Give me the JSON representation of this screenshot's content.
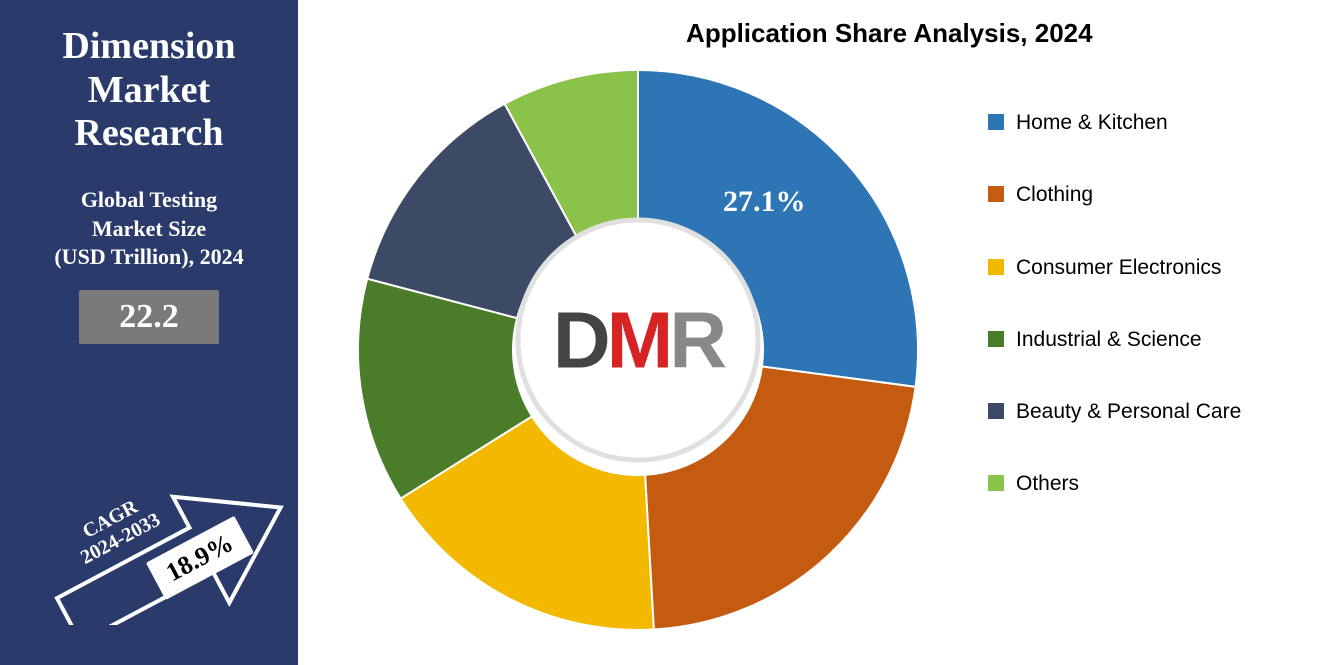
{
  "left": {
    "brand_line1": "Dimension",
    "brand_line2": "Market",
    "brand_line3": "Research",
    "subtitle_line1": "Global Testing",
    "subtitle_line2": "Market Size",
    "subtitle_line3": "(USD Trillion), 2024",
    "market_value": "22.2",
    "value_box_bg": "#7a7a7a",
    "panel_bg": "#2a3a6a",
    "cagr_label_line1": "CAGR",
    "cagr_label_line2": "2024-2033",
    "cagr_value": "18.9%",
    "arrow_fill": "#2a3a6a",
    "arrow_stroke": "#ffffff"
  },
  "chart": {
    "type": "donut",
    "title": "Application Share Analysis, 2024",
    "title_fontsize": 26,
    "title_color": "#000000",
    "background_color": "#ffffff",
    "outer_radius": 280,
    "inner_radius": 125,
    "center_logo": {
      "text": "DMR",
      "d_color": "#444444",
      "m_color": "#d62424",
      "r_color": "#888888"
    },
    "visible_slice_label": "27.1%",
    "visible_slice_label_color": "#ffffff",
    "visible_slice_label_fontsize": 30,
    "series": [
      {
        "label": "Home & Kitchen",
        "value": 27.1,
        "color": "#2e75b6"
      },
      {
        "label": "Clothing",
        "value": 22.0,
        "color": "#c55a11"
      },
      {
        "label": "Consumer Electronics",
        "value": 17.0,
        "color": "#f2b900"
      },
      {
        "label": "Industrial & Science",
        "value": 13.0,
        "color": "#4a7c2a"
      },
      {
        "label": "Beauty & Personal Care",
        "value": 13.0,
        "color": "#3c4a66"
      },
      {
        "label": "Others",
        "value": 7.9,
        "color": "#8bc34a"
      }
    ],
    "legend": {
      "fontsize": 21,
      "font_family": "Arial",
      "text_color": "#000000",
      "swatch_size": 16,
      "spacing": 46
    }
  }
}
